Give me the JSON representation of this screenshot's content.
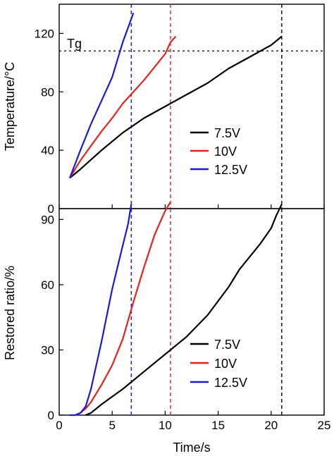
{
  "chart_data": [
    {
      "type": "line",
      "title": "",
      "xlabel": "",
      "ylabel": "Temperature/°C",
      "xlim": [
        0,
        25
      ],
      "ylim": [
        0,
        140
      ],
      "x_ticks": [
        0,
        5,
        10,
        15,
        20,
        25
      ],
      "y_ticks": [
        0,
        40,
        80,
        120
      ],
      "y_tick_labels": [
        "0",
        "40",
        "80",
        "120"
      ],
      "grid": false,
      "legend_position": "center-right",
      "annotations": {
        "tg_label": "Tg",
        "tg_value": 108
      },
      "vlines": [
        {
          "x": 6.8,
          "color": "#1a1adb",
          "style": "dashed"
        },
        {
          "x": 10.5,
          "color": "#e8221f",
          "style": "dashed"
        },
        {
          "x": 21.0,
          "color": "#000000",
          "style": "dashed"
        }
      ],
      "series": [
        {
          "name": "7.5V",
          "color": "#000000",
          "x": [
            1,
            2,
            4,
            6,
            8,
            10,
            12,
            14,
            16,
            18,
            20,
            21
          ],
          "y": [
            21,
            27,
            40,
            52,
            62,
            70,
            78,
            86,
            96,
            104,
            112,
            118
          ]
        },
        {
          "name": "10V",
          "color": "#e8221f",
          "x": [
            1,
            2,
            3,
            4,
            5,
            6,
            7,
            8,
            9,
            10,
            10.5,
            11
          ],
          "y": [
            21,
            33,
            43,
            53,
            62,
            72,
            80,
            88,
            97,
            106,
            114,
            118
          ]
        },
        {
          "name": "12.5V",
          "color": "#1a1adb",
          "x": [
            1,
            2,
            3,
            4,
            5,
            5.5,
            6,
            6.5,
            7
          ],
          "y": [
            21,
            40,
            58,
            74,
            90,
            102,
            114,
            124,
            134
          ]
        }
      ]
    },
    {
      "type": "line",
      "title": "",
      "xlabel": "Time/s",
      "ylabel": "Restored ratio/%",
      "xlim": [
        0,
        25
      ],
      "ylim": [
        0,
        95
      ],
      "x_ticks": [
        0,
        5,
        10,
        15,
        20,
        25
      ],
      "x_tick_labels": [
        "0",
        "5",
        "10",
        "15",
        "20",
        "25"
      ],
      "y_ticks": [
        0,
        30,
        60,
        90
      ],
      "y_tick_labels": [
        "0",
        "30",
        "60",
        "90"
      ],
      "grid": false,
      "legend_position": "bottom-right",
      "vlines": [
        {
          "x": 6.8,
          "color": "#1a1adb",
          "style": "dashed"
        },
        {
          "x": 10.5,
          "color": "#e8221f",
          "style": "dashed"
        },
        {
          "x": 21.0,
          "color": "#000000",
          "style": "dashed"
        }
      ],
      "series": [
        {
          "name": "7.5V",
          "color": "#000000",
          "x": [
            2.5,
            3,
            4,
            6,
            8,
            10,
            12,
            14,
            16,
            17,
            18,
            19,
            20,
            20.5,
            21
          ],
          "y": [
            0,
            1,
            5,
            12,
            20,
            28,
            36,
            46,
            59,
            67,
            73,
            79,
            86,
            92,
            97
          ]
        },
        {
          "name": "10V",
          "color": "#e8221f",
          "x": [
            1.5,
            2,
            2.5,
            3,
            4,
            5,
            6,
            7,
            8,
            9,
            10,
            10.5
          ],
          "y": [
            0,
            1,
            3,
            6,
            14,
            23,
            35,
            52,
            68,
            83,
            94,
            98
          ]
        },
        {
          "name": "12.5V",
          "color": "#1a1adb",
          "x": [
            1,
            1.5,
            2,
            2.5,
            3,
            4,
            5,
            5.5,
            6,
            6.5,
            6.8
          ],
          "y": [
            0,
            0,
            1,
            4,
            12,
            34,
            58,
            68,
            78,
            88,
            97
          ]
        }
      ]
    }
  ]
}
